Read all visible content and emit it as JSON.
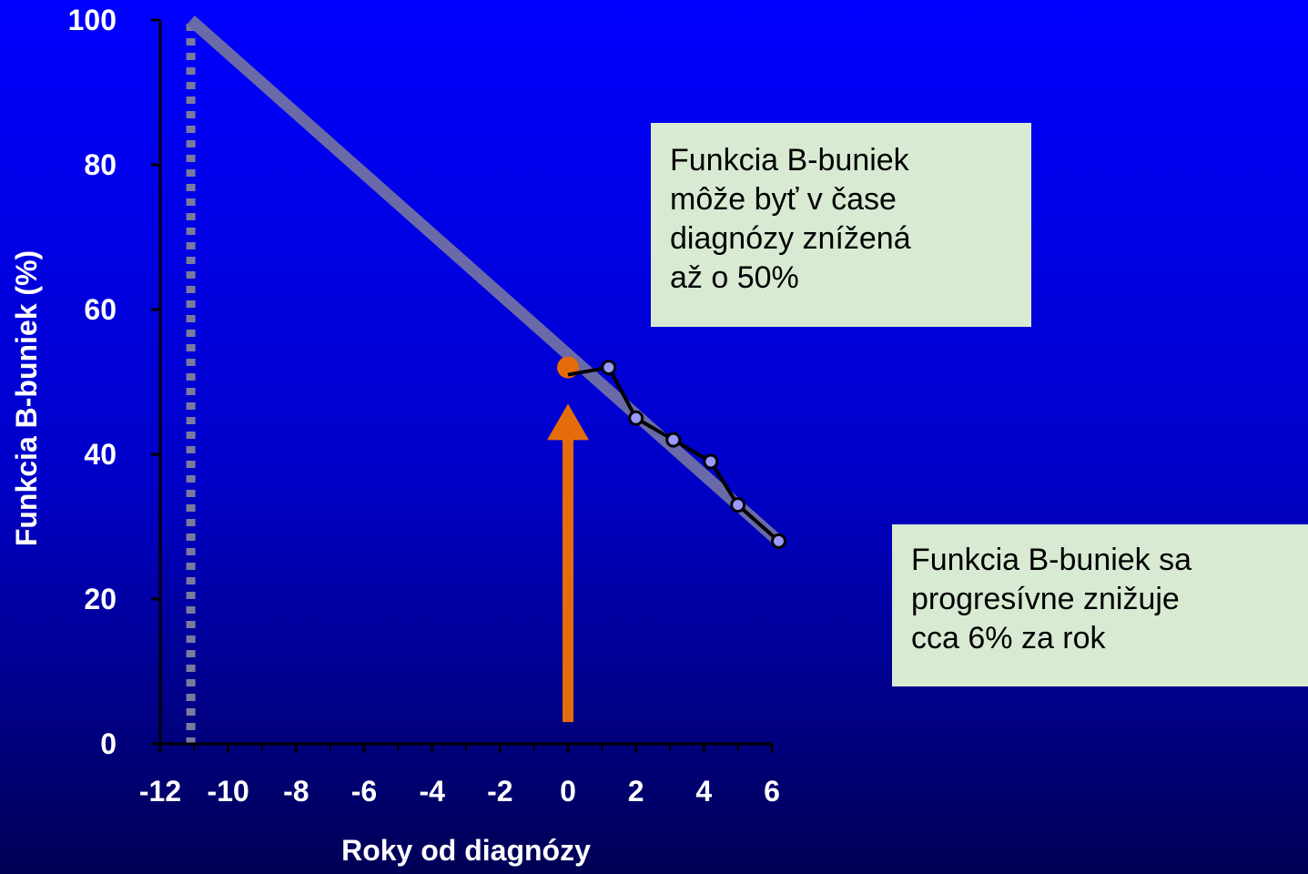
{
  "chart_data": {
    "type": "line",
    "xlabel": "Roky od diagnózy",
    "ylabel": "Funkcia B-buniek (%)",
    "xlim": [
      -12,
      6
    ],
    "ylim": [
      0,
      100
    ],
    "x_ticks": [
      -12,
      -10,
      -8,
      -6,
      -4,
      -2,
      0,
      2,
      4,
      6
    ],
    "y_ticks": [
      0,
      20,
      40,
      60,
      80,
      100
    ],
    "series": [
      {
        "type": "trend-line",
        "color": "#6a6aa8",
        "x": [
          -11.1,
          6.2
        ],
        "y": [
          100,
          28
        ]
      },
      {
        "type": "observed",
        "color": "#000000",
        "marker_color": "#9999ff",
        "x": [
          0,
          1.2,
          2.0,
          3.1,
          4.2,
          5.0,
          6.2
        ],
        "y": [
          51,
          52,
          45,
          42,
          39,
          33,
          28
        ]
      }
    ],
    "reference_line": {
      "x": -11.1,
      "style": "dotted",
      "color": "#7a7a9e"
    },
    "diagnosis_point": {
      "x": 0,
      "y": 52,
      "color": "#e46c0a"
    },
    "diagnosis_arrow": {
      "x": 0,
      "y_from": 3,
      "y_to": 47,
      "color": "#e46c0a"
    }
  },
  "annotations": {
    "box1_lines": [
      "Funkcia B-buniek",
      "môže byť v čase",
      "diagnózy znížená",
      "až o 50%"
    ],
    "box2_lines": [
      "Funkcia  B-buniek sa",
      "progresívne znižuje",
      "cca  6% za rok"
    ]
  }
}
